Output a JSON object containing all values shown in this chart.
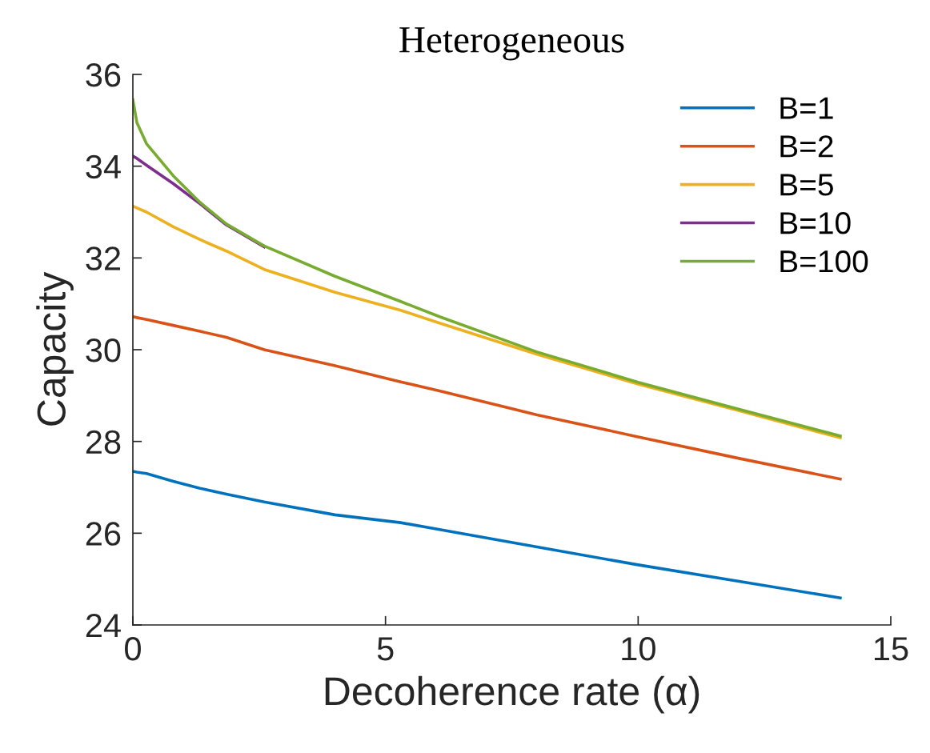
{
  "chart_data": {
    "type": "line",
    "title": "Heterogeneous",
    "xlabel": "Decoherence rate (α)",
    "ylabel": "Capacity",
    "x": [
      0,
      0.08,
      0.27,
      0.8,
      1.33,
      1.85,
      2.6,
      4,
      5.3,
      6.07,
      8,
      10,
      12,
      14
    ],
    "series": [
      {
        "name": "B=1",
        "color": "#0072bd",
        "values": [
          27.35,
          27.33,
          27.3,
          27.13,
          26.98,
          26.85,
          26.68,
          26.4,
          26.23,
          26.08,
          25.7,
          25.31,
          24.95,
          24.59
        ]
      },
      {
        "name": "B=2",
        "color": "#d95319",
        "values": [
          30.72,
          30.7,
          30.66,
          30.53,
          30.4,
          30.27,
          30.0,
          29.65,
          29.3,
          29.1,
          28.58,
          28.1,
          27.63,
          27.18
        ]
      },
      {
        "name": "B=5",
        "color": "#edb120",
        "values": [
          33.13,
          33.09,
          33.0,
          32.68,
          32.4,
          32.15,
          31.75,
          31.25,
          30.86,
          30.58,
          29.9,
          29.25,
          28.67,
          28.08
        ]
      },
      {
        "name": "B=10",
        "color": "#7e2f8e",
        "values": [
          34.22,
          34.17,
          34.02,
          33.62,
          33.18,
          32.72,
          32.24,
          null,
          null,
          null,
          null,
          null,
          null,
          null
        ]
      },
      {
        "name": "B=100",
        "color": "#77ac30",
        "values": [
          35.45,
          34.95,
          34.49,
          33.79,
          33.21,
          32.74,
          32.26,
          31.6,
          31.05,
          30.72,
          29.95,
          29.29,
          28.7,
          28.12
        ]
      }
    ],
    "xlim": [
      0,
      15
    ],
    "xticks": [
      0,
      5,
      10,
      15
    ],
    "ylim": [
      24,
      36
    ],
    "yticks": [
      24,
      26,
      28,
      30,
      32,
      34,
      36
    ],
    "legend": "top right",
    "grid": false,
    "marker": "none",
    "line_style": "solid"
  }
}
